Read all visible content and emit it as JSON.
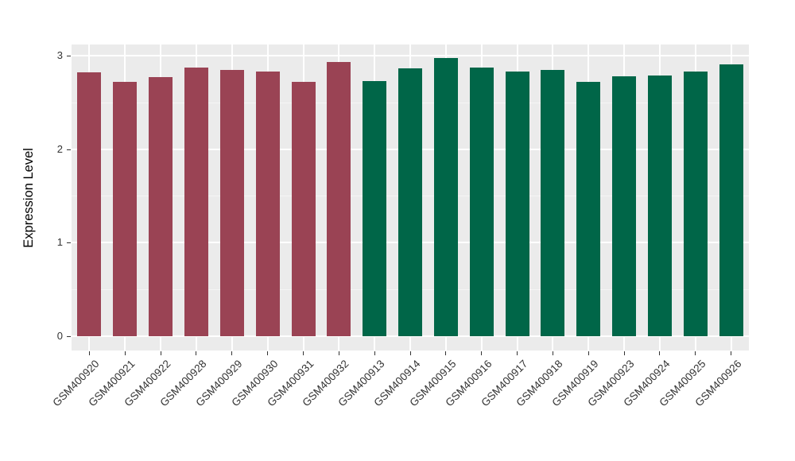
{
  "chart": {
    "background": "#FFFFFF",
    "panel_bg": "#EBEBEB",
    "grid_major_color": "#FFFFFF",
    "grid_minor_color": "#F5F5F5",
    "tick_color": "#333333",
    "axis_text_color": "#333333"
  },
  "chart_data": {
    "type": "bar",
    "title": "",
    "xlabel": "",
    "ylabel": "Expression Level",
    "ylim": [
      0,
      3.12
    ],
    "yticks": [
      0,
      1,
      2,
      3
    ],
    "yticks_minor": [
      0.5,
      1.5,
      2.5
    ],
    "grid": true,
    "legend": "none",
    "categories": [
      "GSM400920",
      "GSM400921",
      "GSM400922",
      "GSM400928",
      "GSM400929",
      "GSM400930",
      "GSM400931",
      "GSM400932",
      "GSM400913",
      "GSM400914",
      "GSM400915",
      "GSM400916",
      "GSM400917",
      "GSM400918",
      "GSM400919",
      "GSM400923",
      "GSM400924",
      "GSM400925",
      "GSM400926"
    ],
    "values": [
      2.82,
      2.72,
      2.77,
      2.87,
      2.85,
      2.83,
      2.72,
      2.93,
      2.73,
      2.86,
      2.97,
      2.87,
      2.83,
      2.85,
      2.72,
      2.78,
      2.79,
      2.83,
      2.91
    ],
    "groups": [
      "A",
      "A",
      "A",
      "A",
      "A",
      "A",
      "A",
      "A",
      "B",
      "B",
      "B",
      "B",
      "B",
      "B",
      "B",
      "B",
      "B",
      "B",
      "B"
    ],
    "group_colors": {
      "A": "#9A4354",
      "B": "#006648"
    }
  }
}
